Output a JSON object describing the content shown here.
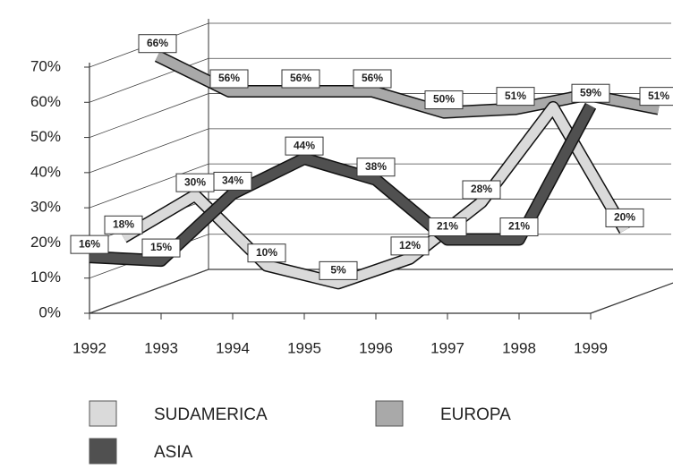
{
  "chart_data": {
    "type": "line3d",
    "categories": [
      "1992",
      "1993",
      "1994",
      "1995",
      "1996",
      "1997",
      "1998",
      "1999"
    ],
    "series": [
      {
        "name": "EUROPA",
        "color": "#a9a9a9",
        "values": [
          66,
          56,
          56,
          56,
          50,
          51,
          55,
          51
        ],
        "value_labels": [
          "66%",
          "56%",
          "56%",
          "56%",
          "50%",
          "51%",
          null,
          "51%"
        ]
      },
      {
        "name": "SUDAMERICA",
        "color": "#dadada",
        "values": [
          18,
          30,
          10,
          5,
          12,
          28,
          55,
          20
        ],
        "value_labels": [
          "18%",
          "30%",
          "10%",
          "5%",
          "12%",
          "28%",
          null,
          "20%"
        ]
      },
      {
        "name": "ASIA",
        "color": "#505050",
        "values": [
          16,
          15,
          34,
          44,
          38,
          21,
          21,
          59
        ],
        "value_labels": [
          "16%",
          "15%",
          "34%",
          "44%",
          "38%",
          "21%",
          "21%",
          "59%"
        ]
      }
    ],
    "legend_order": [
      1,
      0,
      2
    ],
    "ylim": [
      0,
      70
    ],
    "yticks": [
      {
        "value": 0,
        "label": "0%"
      },
      {
        "value": 10,
        "label": "10%"
      },
      {
        "value": 20,
        "label": "20%"
      },
      {
        "value": 30,
        "label": "30%"
      },
      {
        "value": 40,
        "label": "40%"
      },
      {
        "value": 50,
        "label": "50%"
      },
      {
        "value": 60,
        "label": "60%"
      },
      {
        "value": 70,
        "label": "70%"
      }
    ],
    "grid": true
  }
}
